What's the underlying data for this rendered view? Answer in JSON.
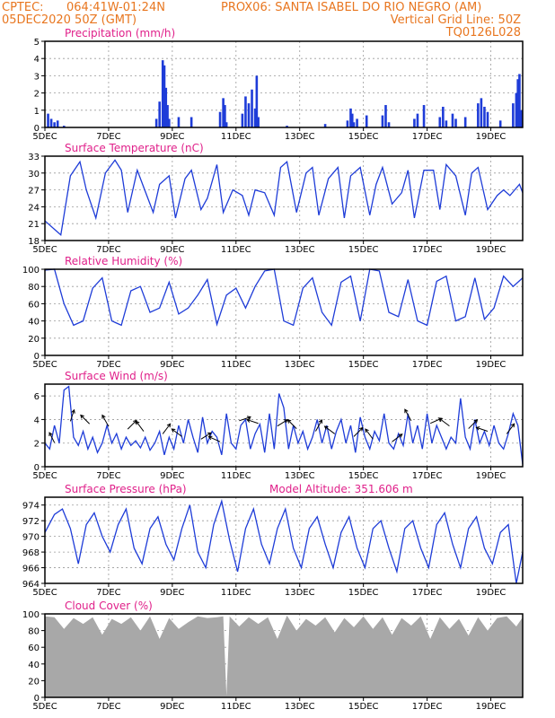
{
  "header": {
    "line1_left": "CPTEC:",
    "line1_coords": "064:41W-01:24N",
    "line1_station": "PROX06: SANTA ISABEL DO RIO NEGRO (AM)",
    "line2_date": "05DEC2020 50Z (GMT)",
    "line2_grid": "Vertical Grid Line: 50Z",
    "line3_code": "TQ0126L028"
  },
  "colors": {
    "series": "#1e3cd8",
    "header": "#e8761f",
    "title": "#e0208a",
    "cloud": "#a8a8a8",
    "grid": "#9a9a9a"
  },
  "x_tick_labels": [
    "5DEC",
    "7DEC",
    "9DEC",
    "11DEC",
    "13DEC",
    "15DEC",
    "17DEC",
    "19DEC"
  ],
  "chart_data": [
    {
      "type": "bar",
      "title": "Precipitation (mm/h)",
      "x_range_days": [
        5,
        20
      ],
      "ylim": [
        0,
        5
      ],
      "yticks": [
        0,
        1,
        2,
        3,
        4,
        5
      ],
      "grid": true,
      "x": [
        5.1,
        5.2,
        5.3,
        5.4,
        5.6,
        8.5,
        8.6,
        8.7,
        8.75,
        8.8,
        8.85,
        8.9,
        9.2,
        9.6,
        10.5,
        10.6,
        10.65,
        10.7,
        11.2,
        11.3,
        11.4,
        11.5,
        11.6,
        11.65,
        11.7,
        12.6,
        13.8,
        14.5,
        14.6,
        14.65,
        14.7,
        14.8,
        15.1,
        15.6,
        15.7,
        15.8,
        16.6,
        16.7,
        16.9,
        17.4,
        17.5,
        17.6,
        17.8,
        17.9,
        18.2,
        18.6,
        18.7,
        18.8,
        18.9,
        19.3,
        19.7,
        19.8,
        19.85,
        19.9,
        19.95
      ],
      "values": [
        0.8,
        0.5,
        0.3,
        0.4,
        0.1,
        0.5,
        1.5,
        3.9,
        3.6,
        2.3,
        1.3,
        0.5,
        0.6,
        0.6,
        0.9,
        1.7,
        1.3,
        0.3,
        0.8,
        1.8,
        1.4,
        2.2,
        1.1,
        3.0,
        0.6,
        0.1,
        0.2,
        0.4,
        1.1,
        0.8,
        0.3,
        0.5,
        0.7,
        0.7,
        1.3,
        0.3,
        0.5,
        0.8,
        1.3,
        0.6,
        1.2,
        0.4,
        0.8,
        0.5,
        0.6,
        1.4,
        1.7,
        1.2,
        0.9,
        0.4,
        1.4,
        2.0,
        2.8,
        3.1,
        1.0
      ]
    },
    {
      "type": "line",
      "title": "Surface Temperature (nC)",
      "x_range_days": [
        5,
        20
      ],
      "ylim": [
        18,
        33
      ],
      "yticks": [
        18,
        21,
        24,
        27,
        30,
        33
      ],
      "grid": true,
      "x": [
        5.0,
        5.3,
        5.5,
        5.8,
        6.1,
        6.3,
        6.6,
        6.9,
        7.2,
        7.4,
        7.6,
        7.9,
        8.1,
        8.4,
        8.6,
        8.9,
        9.1,
        9.4,
        9.6,
        9.9,
        10.1,
        10.4,
        10.6,
        10.9,
        11.2,
        11.4,
        11.6,
        11.9,
        12.2,
        12.4,
        12.6,
        12.9,
        13.2,
        13.4,
        13.6,
        13.9,
        14.2,
        14.4,
        14.6,
        14.9,
        15.2,
        15.4,
        15.6,
        15.9,
        16.2,
        16.4,
        16.6,
        16.9,
        17.2,
        17.4,
        17.6,
        17.9,
        18.2,
        18.4,
        18.6,
        18.9,
        19.2,
        19.4,
        19.6,
        19.9,
        20.0
      ],
      "values": [
        21.5,
        20.0,
        19.0,
        29.5,
        32.0,
        27.0,
        22.0,
        30.0,
        32.3,
        30.5,
        23.0,
        30.5,
        27.5,
        23.0,
        28.0,
        29.5,
        22.0,
        29.0,
        30.5,
        23.5,
        25.5,
        31.5,
        23.0,
        27.0,
        26.0,
        22.5,
        27.0,
        26.5,
        22.5,
        31.0,
        32.0,
        23.0,
        30.0,
        31.0,
        22.5,
        29.0,
        31.0,
        22.0,
        29.5,
        31.0,
        22.5,
        28.0,
        31.0,
        24.5,
        26.5,
        30.5,
        22.0,
        30.5,
        30.5,
        23.5,
        31.5,
        29.5,
        22.5,
        30.0,
        31.0,
        23.5,
        26.0,
        27.0,
        26.0,
        28.0,
        26.5
      ]
    },
    {
      "type": "line",
      "title": "Relative Humidity (%)",
      "x_range_days": [
        5,
        20
      ],
      "ylim": [
        0,
        100
      ],
      "yticks": [
        0,
        20,
        40,
        60,
        80,
        100
      ],
      "grid": true,
      "x": [
        5.0,
        5.3,
        5.6,
        5.9,
        6.2,
        6.5,
        6.8,
        7.1,
        7.4,
        7.7,
        8.0,
        8.3,
        8.6,
        8.9,
        9.2,
        9.5,
        9.8,
        10.1,
        10.4,
        10.7,
        11.0,
        11.3,
        11.6,
        11.9,
        12.2,
        12.5,
        12.8,
        13.1,
        13.4,
        13.7,
        14.0,
        14.3,
        14.6,
        14.9,
        15.2,
        15.5,
        15.8,
        16.1,
        16.4,
        16.7,
        17.0,
        17.3,
        17.6,
        17.9,
        18.2,
        18.5,
        18.8,
        19.1,
        19.4,
        19.7,
        20.0
      ],
      "values": [
        99,
        100,
        60,
        35,
        40,
        78,
        90,
        40,
        35,
        75,
        80,
        50,
        55,
        85,
        48,
        55,
        70,
        88,
        36,
        70,
        78,
        55,
        80,
        98,
        100,
        40,
        35,
        78,
        90,
        50,
        35,
        85,
        92,
        40,
        100,
        98,
        50,
        45,
        88,
        40,
        35,
        86,
        92,
        40,
        45,
        90,
        42,
        55,
        92,
        80,
        90
      ]
    },
    {
      "type": "line",
      "title": "Surface Wind (m/s)",
      "x_range_days": [
        5,
        20
      ],
      "ylim": [
        0,
        7
      ],
      "yticks": [
        0,
        2,
        4,
        6
      ],
      "grid": true,
      "x": [
        5.0,
        5.15,
        5.3,
        5.45,
        5.6,
        5.75,
        5.9,
        6.05,
        6.2,
        6.35,
        6.5,
        6.65,
        6.8,
        6.95,
        7.1,
        7.25,
        7.4,
        7.55,
        7.7,
        7.85,
        8.0,
        8.15,
        8.3,
        8.45,
        8.6,
        8.75,
        8.9,
        9.05,
        9.2,
        9.35,
        9.5,
        9.65,
        9.8,
        9.95,
        10.1,
        10.25,
        10.4,
        10.55,
        10.7,
        10.85,
        11.0,
        11.15,
        11.3,
        11.45,
        11.6,
        11.75,
        11.9,
        12.05,
        12.2,
        12.35,
        12.5,
        12.65,
        12.8,
        12.95,
        13.1,
        13.25,
        13.4,
        13.55,
        13.7,
        13.85,
        14.0,
        14.15,
        14.3,
        14.45,
        14.6,
        14.75,
        14.9,
        15.05,
        15.2,
        15.35,
        15.5,
        15.65,
        15.8,
        15.95,
        16.1,
        16.25,
        16.4,
        16.55,
        16.7,
        16.85,
        17.0,
        17.15,
        17.3,
        17.45,
        17.6,
        17.75,
        17.9,
        18.05,
        18.2,
        18.35,
        18.5,
        18.65,
        18.8,
        18.95,
        19.1,
        19.25,
        19.4,
        19.55,
        19.7,
        19.85,
        20.0
      ],
      "values": [
        2.0,
        1.5,
        3.5,
        2.0,
        6.5,
        6.8,
        2.5,
        1.8,
        3.0,
        1.5,
        2.5,
        1.2,
        2.0,
        3.5,
        2.0,
        2.8,
        1.5,
        2.5,
        1.8,
        2.2,
        1.6,
        2.5,
        1.4,
        2.0,
        3.0,
        1.0,
        2.5,
        1.5,
        3.5,
        2.0,
        4.0,
        2.5,
        1.2,
        4.2,
        2.0,
        3.0,
        2.5,
        1.0,
        4.5,
        2.0,
        1.5,
        3.5,
        4.0,
        1.5,
        2.8,
        3.6,
        1.2,
        4.5,
        1.5,
        6.2,
        5.0,
        1.5,
        3.5,
        2.0,
        3.0,
        1.5,
        2.5,
        4.0,
        2.0,
        3.5,
        1.5,
        3.0,
        4.0,
        2.0,
        3.5,
        1.2,
        4.2,
        2.5,
        1.5,
        3.0,
        2.2,
        4.5,
        2.0,
        1.5,
        2.8,
        1.8,
        4.5,
        2.0,
        3.5,
        1.5,
        4.5,
        2.0,
        3.5,
        2.5,
        1.5,
        2.5,
        2.0,
        5.8,
        2.5,
        1.5,
        4.0,
        2.0,
        3.0,
        1.8,
        3.5,
        2.0,
        1.5,
        2.8,
        4.5,
        3.5,
        0.2
      ],
      "arrows": [
        {
          "x": 5.3,
          "u": -0.4,
          "v": 0.8
        },
        {
          "x": 5.8,
          "u": 0.3,
          "v": 0.9
        },
        {
          "x": 6.4,
          "u": -0.7,
          "v": 0.7
        },
        {
          "x": 7.0,
          "u": -0.5,
          "v": 0.9
        },
        {
          "x": 7.6,
          "u": 0.7,
          "v": 0.7
        },
        {
          "x": 8.1,
          "u": -0.6,
          "v": 0.8
        },
        {
          "x": 8.7,
          "u": 0.6,
          "v": 0.8
        },
        {
          "x": 9.3,
          "u": -0.8,
          "v": 0.6
        },
        {
          "x": 9.9,
          "u": 0.8,
          "v": 0.5
        },
        {
          "x": 10.5,
          "u": -0.9,
          "v": 0.4
        },
        {
          "x": 11.1,
          "u": 0.9,
          "v": 0.3
        },
        {
          "x": 11.7,
          "u": -0.9,
          "v": 0.3
        },
        {
          "x": 12.3,
          "u": 0.8,
          "v": 0.5
        },
        {
          "x": 12.9,
          "u": -0.7,
          "v": 0.7
        },
        {
          "x": 13.5,
          "u": 0.5,
          "v": 0.9
        },
        {
          "x": 14.1,
          "u": -0.8,
          "v": 0.6
        },
        {
          "x": 14.7,
          "u": 0.7,
          "v": 0.7
        },
        {
          "x": 15.3,
          "u": -0.6,
          "v": 0.8
        },
        {
          "x": 15.9,
          "u": 0.8,
          "v": 0.6
        },
        {
          "x": 16.5,
          "u": -0.5,
          "v": 0.9
        },
        {
          "x": 17.1,
          "u": 0.9,
          "v": 0.4
        },
        {
          "x": 17.7,
          "u": -0.8,
          "v": 0.6
        },
        {
          "x": 18.3,
          "u": 0.7,
          "v": 0.7
        },
        {
          "x": 18.9,
          "u": -0.9,
          "v": 0.3
        },
        {
          "x": 19.5,
          "u": 0.6,
          "v": 0.8
        }
      ]
    },
    {
      "type": "line",
      "title": "Surface Pressure (hPa)",
      "annotation": "Model Altitude: 351.606 m",
      "x_range_days": [
        5,
        20
      ],
      "ylim": [
        964,
        975
      ],
      "yticks": [
        964,
        966,
        968,
        970,
        972,
        974
      ],
      "grid": true,
      "x": [
        5.0,
        5.3,
        5.55,
        5.8,
        6.05,
        6.3,
        6.55,
        6.8,
        7.05,
        7.3,
        7.55,
        7.8,
        8.05,
        8.3,
        8.55,
        8.8,
        9.05,
        9.3,
        9.55,
        9.8,
        10.05,
        10.3,
        10.55,
        10.8,
        11.05,
        11.3,
        11.55,
        11.8,
        12.05,
        12.3,
        12.55,
        12.8,
        13.05,
        13.3,
        13.55,
        13.8,
        14.05,
        14.3,
        14.55,
        14.8,
        15.05,
        15.3,
        15.55,
        15.8,
        16.05,
        16.3,
        16.55,
        16.8,
        17.05,
        17.3,
        17.55,
        17.8,
        18.05,
        18.3,
        18.55,
        18.8,
        19.05,
        19.3,
        19.55,
        19.8,
        20.0
      ],
      "values": [
        970.5,
        972.8,
        973.5,
        971.0,
        966.5,
        971.5,
        973.0,
        970.0,
        968.0,
        971.5,
        973.5,
        968.5,
        966.5,
        971.0,
        972.5,
        969.0,
        967.0,
        971.0,
        974.0,
        968.0,
        966.0,
        971.5,
        974.5,
        969.5,
        965.5,
        971.0,
        973.5,
        969.0,
        966.5,
        971.0,
        973.5,
        968.5,
        966.0,
        971.0,
        972.5,
        969.0,
        966.0,
        970.5,
        972.5,
        968.5,
        966.0,
        971.0,
        972.0,
        968.5,
        965.5,
        971.0,
        972.0,
        968.5,
        966.0,
        971.5,
        973.0,
        969.0,
        966.0,
        971.0,
        972.5,
        968.5,
        966.5,
        970.5,
        971.5,
        964.0,
        968.0
      ]
    },
    {
      "type": "area",
      "title": "Cloud Cover (%)",
      "x_range_days": [
        5,
        20
      ],
      "ylim": [
        0,
        100
      ],
      "yticks": [
        0,
        20,
        40,
        60,
        80,
        100
      ],
      "grid": true,
      "x": [
        5.0,
        5.3,
        5.6,
        5.9,
        6.2,
        6.5,
        6.8,
        7.1,
        7.4,
        7.7,
        8.0,
        8.3,
        8.6,
        8.9,
        9.2,
        9.5,
        9.8,
        10.1,
        10.4,
        10.6,
        10.7,
        10.8,
        11.1,
        11.4,
        11.7,
        12.0,
        12.3,
        12.6,
        12.9,
        13.2,
        13.5,
        13.8,
        14.1,
        14.4,
        14.7,
        15.0,
        15.3,
        15.6,
        15.9,
        16.2,
        16.5,
        16.8,
        17.1,
        17.4,
        17.7,
        18.0,
        18.3,
        18.6,
        18.9,
        19.2,
        19.5,
        19.8,
        20.0
      ],
      "values": [
        97,
        96,
        82,
        95,
        88,
        96,
        75,
        94,
        88,
        96,
        80,
        97,
        70,
        95,
        82,
        90,
        97,
        95,
        96,
        97,
        2,
        97,
        85,
        96,
        88,
        96,
        70,
        98,
        80,
        94,
        86,
        96,
        78,
        95,
        84,
        97,
        82,
        96,
        75,
        95,
        86,
        97,
        70,
        96,
        82,
        94,
        74,
        96,
        80,
        95,
        97,
        85,
        96
      ]
    }
  ]
}
